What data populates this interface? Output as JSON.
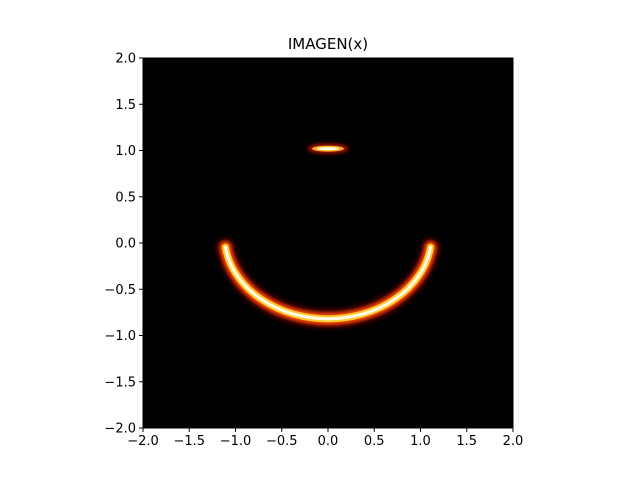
{
  "chart_data": {
    "type": "heatmap",
    "title": "IMAGEN(x)",
    "xlabel": "",
    "ylabel": "",
    "xlim": [
      -2.0,
      2.0
    ],
    "ylim": [
      -2.0,
      2.0
    ],
    "x_ticks": [
      -2.0,
      -1.5,
      -1.0,
      -0.5,
      0.0,
      0.5,
      1.0,
      1.5,
      2.0
    ],
    "y_ticks": [
      -2.0,
      -1.5,
      -1.0,
      -0.5,
      0.0,
      0.5,
      1.0,
      1.5,
      2.0
    ],
    "x_tick_labels": [
      "−2.0",
      "−1.5",
      "−1.0",
      "−0.5",
      "0.0",
      "0.5",
      "1.0",
      "1.5",
      "2.0"
    ],
    "y_tick_labels": [
      "−2.0",
      "−1.5",
      "−1.0",
      "−0.5",
      "0.0",
      "0.5",
      "1.0",
      "1.5",
      "2.0"
    ],
    "colormap": "hot",
    "background_color": "#000000",
    "grid": false,
    "features": [
      {
        "kind": "arc",
        "description": "bright curved arc (smile)",
        "center": [
          0.0,
          0.08
        ],
        "radius_x": 1.12,
        "radius_y": 0.9,
        "start_angle_deg": -172,
        "end_angle_deg": -8,
        "peak_intensity": 1.0
      },
      {
        "kind": "blob",
        "description": "small bright elongated spot",
        "center": [
          0.0,
          1.02
        ],
        "radius_x": 0.22,
        "radius_y": 0.04,
        "peak_intensity": 1.0
      }
    ]
  }
}
